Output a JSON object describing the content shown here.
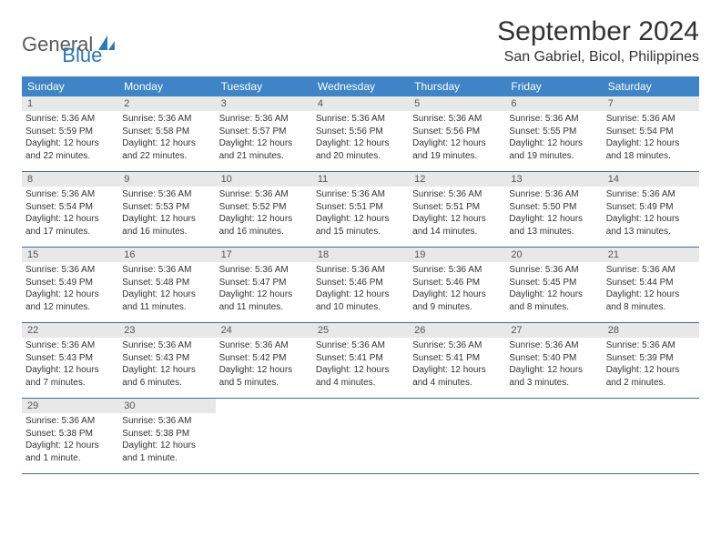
{
  "logo": {
    "part1": "General",
    "part2": "Blue"
  },
  "title": "September 2024",
  "location": "San Gabriel, Bicol, Philippines",
  "theme": {
    "header_bg": "#3e84c6",
    "header_text": "#ffffff",
    "band_bg": "#e8e8e8",
    "rule_color": "#3e6a9e",
    "logo_accent": "#2a7ab8",
    "logo_gray": "#5a5a5a"
  },
  "daysOfWeek": [
    "Sunday",
    "Monday",
    "Tuesday",
    "Wednesday",
    "Thursday",
    "Friday",
    "Saturday"
  ],
  "weeks": [
    [
      {
        "n": "1",
        "sr": "Sunrise: 5:36 AM",
        "ss": "Sunset: 5:59 PM",
        "d1": "Daylight: 12 hours",
        "d2": "and 22 minutes."
      },
      {
        "n": "2",
        "sr": "Sunrise: 5:36 AM",
        "ss": "Sunset: 5:58 PM",
        "d1": "Daylight: 12 hours",
        "d2": "and 22 minutes."
      },
      {
        "n": "3",
        "sr": "Sunrise: 5:36 AM",
        "ss": "Sunset: 5:57 PM",
        "d1": "Daylight: 12 hours",
        "d2": "and 21 minutes."
      },
      {
        "n": "4",
        "sr": "Sunrise: 5:36 AM",
        "ss": "Sunset: 5:56 PM",
        "d1": "Daylight: 12 hours",
        "d2": "and 20 minutes."
      },
      {
        "n": "5",
        "sr": "Sunrise: 5:36 AM",
        "ss": "Sunset: 5:56 PM",
        "d1": "Daylight: 12 hours",
        "d2": "and 19 minutes."
      },
      {
        "n": "6",
        "sr": "Sunrise: 5:36 AM",
        "ss": "Sunset: 5:55 PM",
        "d1": "Daylight: 12 hours",
        "d2": "and 19 minutes."
      },
      {
        "n": "7",
        "sr": "Sunrise: 5:36 AM",
        "ss": "Sunset: 5:54 PM",
        "d1": "Daylight: 12 hours",
        "d2": "and 18 minutes."
      }
    ],
    [
      {
        "n": "8",
        "sr": "Sunrise: 5:36 AM",
        "ss": "Sunset: 5:54 PM",
        "d1": "Daylight: 12 hours",
        "d2": "and 17 minutes."
      },
      {
        "n": "9",
        "sr": "Sunrise: 5:36 AM",
        "ss": "Sunset: 5:53 PM",
        "d1": "Daylight: 12 hours",
        "d2": "and 16 minutes."
      },
      {
        "n": "10",
        "sr": "Sunrise: 5:36 AM",
        "ss": "Sunset: 5:52 PM",
        "d1": "Daylight: 12 hours",
        "d2": "and 16 minutes."
      },
      {
        "n": "11",
        "sr": "Sunrise: 5:36 AM",
        "ss": "Sunset: 5:51 PM",
        "d1": "Daylight: 12 hours",
        "d2": "and 15 minutes."
      },
      {
        "n": "12",
        "sr": "Sunrise: 5:36 AM",
        "ss": "Sunset: 5:51 PM",
        "d1": "Daylight: 12 hours",
        "d2": "and 14 minutes."
      },
      {
        "n": "13",
        "sr": "Sunrise: 5:36 AM",
        "ss": "Sunset: 5:50 PM",
        "d1": "Daylight: 12 hours",
        "d2": "and 13 minutes."
      },
      {
        "n": "14",
        "sr": "Sunrise: 5:36 AM",
        "ss": "Sunset: 5:49 PM",
        "d1": "Daylight: 12 hours",
        "d2": "and 13 minutes."
      }
    ],
    [
      {
        "n": "15",
        "sr": "Sunrise: 5:36 AM",
        "ss": "Sunset: 5:49 PM",
        "d1": "Daylight: 12 hours",
        "d2": "and 12 minutes."
      },
      {
        "n": "16",
        "sr": "Sunrise: 5:36 AM",
        "ss": "Sunset: 5:48 PM",
        "d1": "Daylight: 12 hours",
        "d2": "and 11 minutes."
      },
      {
        "n": "17",
        "sr": "Sunrise: 5:36 AM",
        "ss": "Sunset: 5:47 PM",
        "d1": "Daylight: 12 hours",
        "d2": "and 11 minutes."
      },
      {
        "n": "18",
        "sr": "Sunrise: 5:36 AM",
        "ss": "Sunset: 5:46 PM",
        "d1": "Daylight: 12 hours",
        "d2": "and 10 minutes."
      },
      {
        "n": "19",
        "sr": "Sunrise: 5:36 AM",
        "ss": "Sunset: 5:46 PM",
        "d1": "Daylight: 12 hours",
        "d2": "and 9 minutes."
      },
      {
        "n": "20",
        "sr": "Sunrise: 5:36 AM",
        "ss": "Sunset: 5:45 PM",
        "d1": "Daylight: 12 hours",
        "d2": "and 8 minutes."
      },
      {
        "n": "21",
        "sr": "Sunrise: 5:36 AM",
        "ss": "Sunset: 5:44 PM",
        "d1": "Daylight: 12 hours",
        "d2": "and 8 minutes."
      }
    ],
    [
      {
        "n": "22",
        "sr": "Sunrise: 5:36 AM",
        "ss": "Sunset: 5:43 PM",
        "d1": "Daylight: 12 hours",
        "d2": "and 7 minutes."
      },
      {
        "n": "23",
        "sr": "Sunrise: 5:36 AM",
        "ss": "Sunset: 5:43 PM",
        "d1": "Daylight: 12 hours",
        "d2": "and 6 minutes."
      },
      {
        "n": "24",
        "sr": "Sunrise: 5:36 AM",
        "ss": "Sunset: 5:42 PM",
        "d1": "Daylight: 12 hours",
        "d2": "and 5 minutes."
      },
      {
        "n": "25",
        "sr": "Sunrise: 5:36 AM",
        "ss": "Sunset: 5:41 PM",
        "d1": "Daylight: 12 hours",
        "d2": "and 4 minutes."
      },
      {
        "n": "26",
        "sr": "Sunrise: 5:36 AM",
        "ss": "Sunset: 5:41 PM",
        "d1": "Daylight: 12 hours",
        "d2": "and 4 minutes."
      },
      {
        "n": "27",
        "sr": "Sunrise: 5:36 AM",
        "ss": "Sunset: 5:40 PM",
        "d1": "Daylight: 12 hours",
        "d2": "and 3 minutes."
      },
      {
        "n": "28",
        "sr": "Sunrise: 5:36 AM",
        "ss": "Sunset: 5:39 PM",
        "d1": "Daylight: 12 hours",
        "d2": "and 2 minutes."
      }
    ],
    [
      {
        "n": "29",
        "sr": "Sunrise: 5:36 AM",
        "ss": "Sunset: 5:38 PM",
        "d1": "Daylight: 12 hours",
        "d2": "and 1 minute."
      },
      {
        "n": "30",
        "sr": "Sunrise: 5:36 AM",
        "ss": "Sunset: 5:38 PM",
        "d1": "Daylight: 12 hours",
        "d2": "and 1 minute."
      },
      null,
      null,
      null,
      null,
      null
    ]
  ]
}
